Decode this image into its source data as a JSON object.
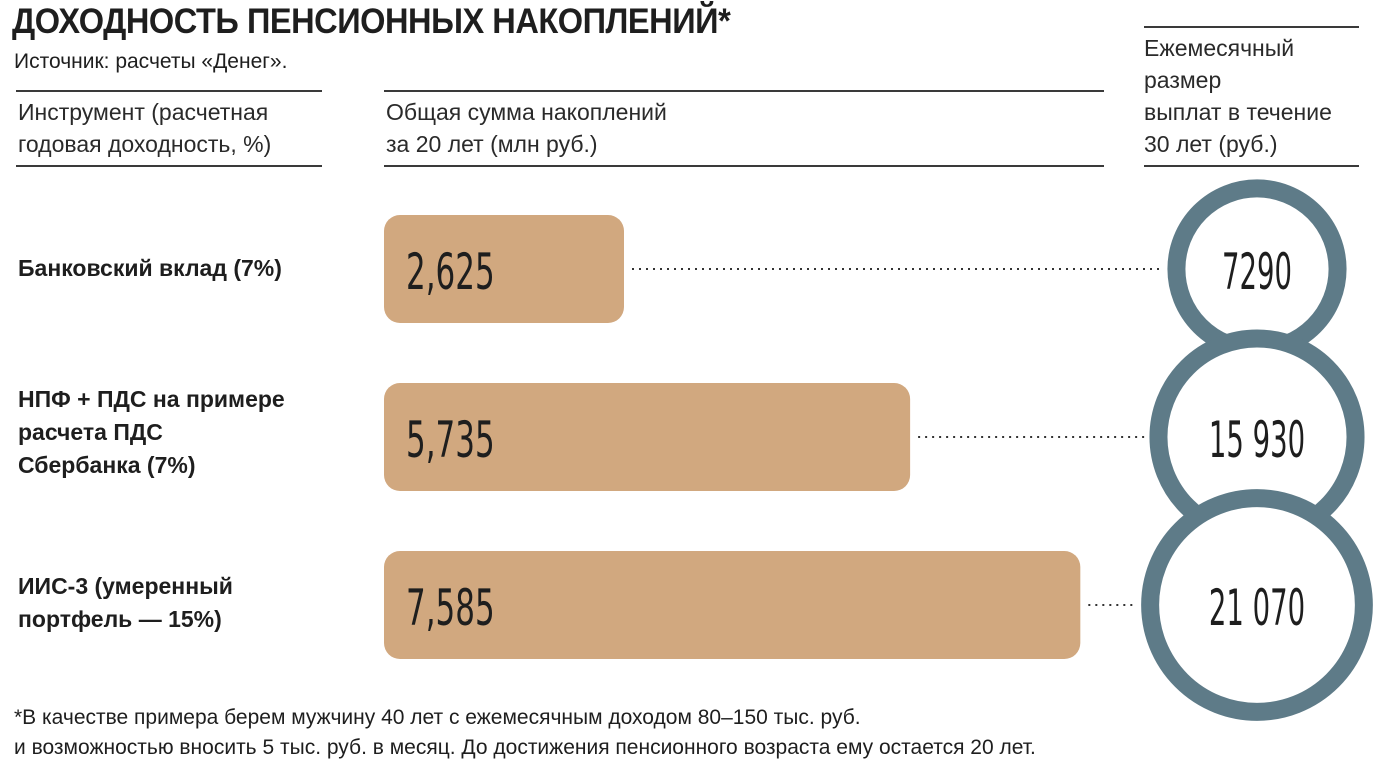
{
  "title": "ДОХОДНОСТЬ ПЕНСИОННЫХ НАКОПЛЕНИЙ*",
  "source": "Источник: расчеты «Денег».",
  "columns": {
    "instrument": [
      "Инструмент (расчетная",
      "годовая доходность, %)"
    ],
    "total": [
      "Общая сумма накоплений",
      "за 20 лет (млн руб.)"
    ],
    "payout": [
      "Ежемесячный",
      "размер",
      "выплат в течение",
      "30 лет (руб.)"
    ]
  },
  "rows": [
    {
      "label": [
        "Банковский вклад (7%)"
      ]
    },
    {
      "label": [
        "НПФ + ПДС на примере",
        "расчета ПДС",
        "Сбербанка (7%)"
      ]
    },
    {
      "label": [
        "ИИС-3 (умеренный",
        "портфель — 15%)"
      ]
    }
  ],
  "footnote": [
    "*В качестве примера берем мужчину 40 лет с ежемесячным доходом 80–150 тыс. руб.",
    "  и возможностью вносить 5 тыс. руб. в месяц. До достижения пенсионного возраста ему остается 20 лет."
  ],
  "colors": {
    "bar": "#d1a87f",
    "ring": "#5e7b88",
    "text": "#1e1e1e"
  },
  "chart_data": {
    "type": "bar",
    "categories": [
      "Банковский вклад (7%)",
      "НПФ + ПДС на примере расчета ПДС Сбербанка (7%)",
      "ИИС-3 (умеренный портфель — 15%)"
    ],
    "series": [
      {
        "name": "Общая сумма накоплений за 20 лет (млн руб.)",
        "values": [
          2.625,
          5.735,
          7.585
        ],
        "labels": [
          "2,625",
          "5,735",
          "7,585"
        ]
      },
      {
        "name": "Ежемесячный размер выплат в течение 30 лет (руб.)",
        "values": [
          7290,
          15930,
          21070
        ],
        "labels": [
          "7290",
          "15 930",
          "21 070"
        ]
      }
    ]
  }
}
